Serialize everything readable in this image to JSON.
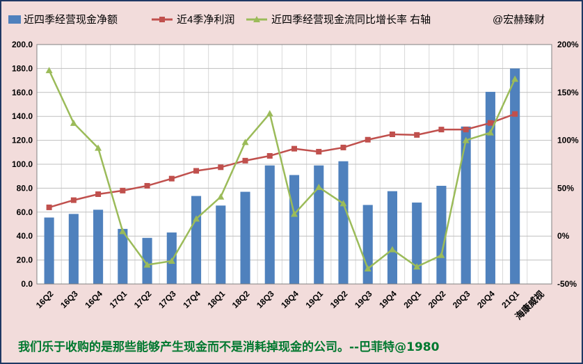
{
  "colors": {
    "background": "#f2dcdb",
    "border": "#1f3864",
    "bar": "#4f81bd",
    "profit_line": "#c0504d",
    "growth_line": "#9bbb59",
    "quote_text": "#00782f"
  },
  "chart_data": {
    "type": "bar",
    "categories": [
      "16Q2",
      "16Q3",
      "16Q4",
      "17Q1",
      "17Q2",
      "17Q3",
      "17Q4",
      "18Q1",
      "18Q2",
      "18Q3",
      "18Q4",
      "19Q1",
      "19Q2",
      "19Q3",
      "19Q4",
      "20Q1",
      "20Q2",
      "20Q3",
      "20Q4",
      "21Q1"
    ],
    "extra_category_label": "海康威视",
    "legend": [
      "近四季经营现金净额",
      "近4季净利润",
      "近四季经营现金流同比增长率 右轴",
      "@宏赫臻财"
    ],
    "series": [
      {
        "name": "近四季经营现金净额",
        "type": "bar",
        "axis": "left",
        "values": [
          55.5,
          58.5,
          62,
          46,
          38.5,
          43,
          73.5,
          65.5,
          77,
          99,
          91,
          99,
          102.5,
          66,
          77.5,
          68,
          82,
          131.5,
          160.5,
          180
        ]
      },
      {
        "name": "近4季净利润",
        "type": "line",
        "axis": "left",
        "marker": "square",
        "values": [
          64,
          70,
          75,
          78,
          82,
          88,
          94.5,
          97.5,
          103,
          107,
          113,
          110.5,
          114,
          120.5,
          125,
          124.5,
          129,
          129,
          134.5,
          142
        ]
      },
      {
        "name": "近四季经营现金流同比增长率 右轴",
        "type": "line",
        "axis": "right",
        "marker": "triangle",
        "values": [
          173,
          118,
          92,
          5,
          -30,
          -26,
          18,
          41,
          98,
          128,
          23,
          51,
          34,
          -34,
          -14,
          -32,
          -20,
          100,
          108,
          164
        ]
      }
    ],
    "y_left": {
      "min": 0,
      "max": 200,
      "step": 20,
      "tick_labels": [
        "0.0",
        "20.0",
        "40.0",
        "60.0",
        "80.0",
        "100.0",
        "120.0",
        "140.0",
        "160.0",
        "180.0",
        "200.0"
      ]
    },
    "y_right": {
      "min": -50,
      "max": 200,
      "step": 50,
      "tick_labels": [
        "-50%",
        "0%",
        "50%",
        "100%",
        "150%",
        "200%"
      ]
    },
    "grid": "horizontal",
    "legend_position": "top"
  },
  "quote": "我们乐于收购的是那些能够产生现金而不是消耗掉现金的公司。--巴菲特@1980"
}
